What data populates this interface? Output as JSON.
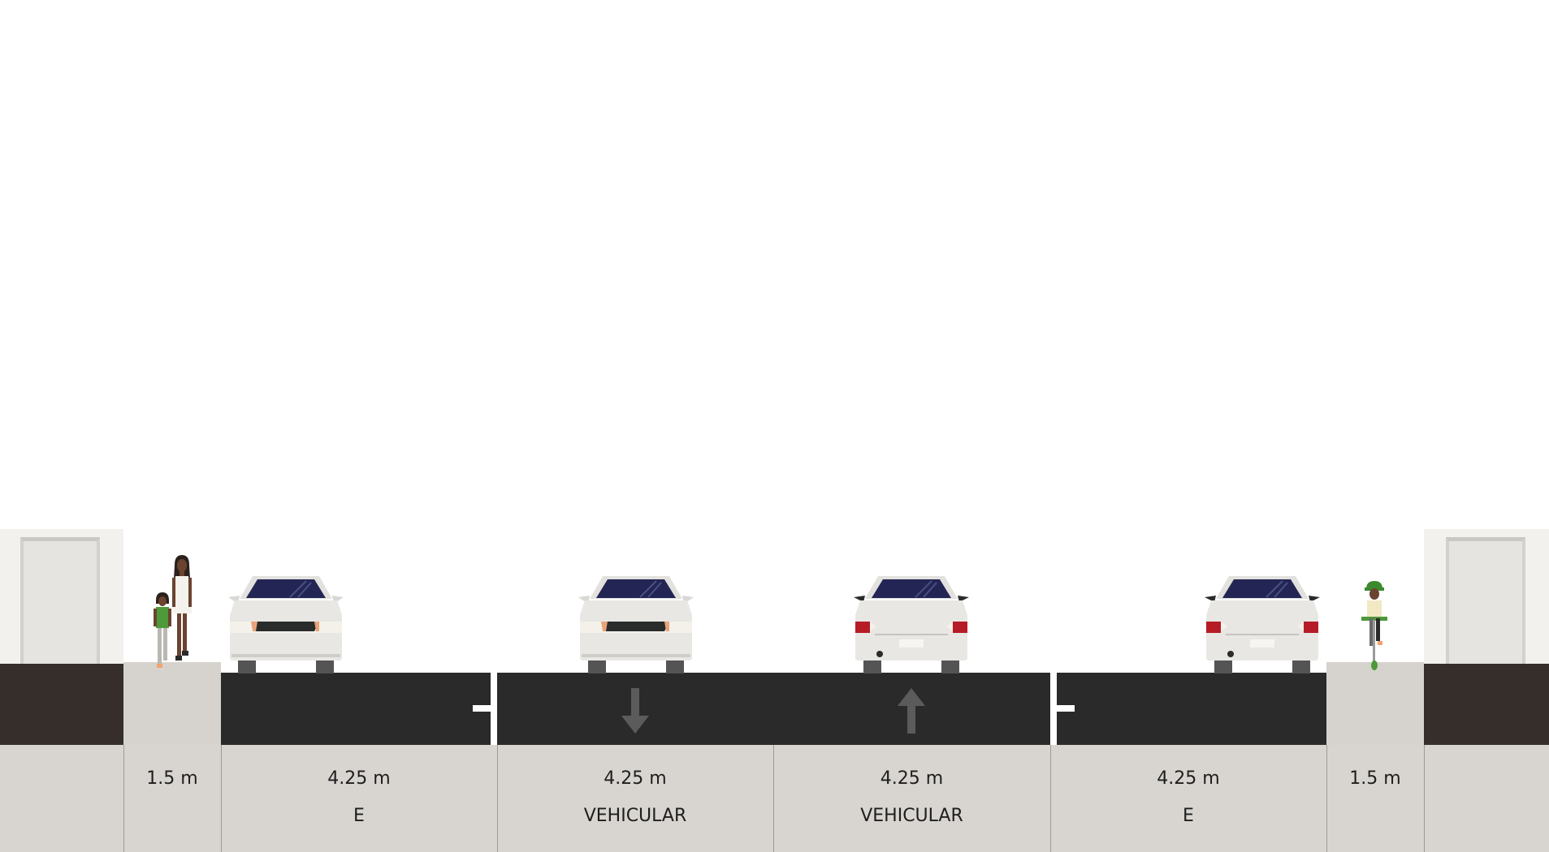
{
  "segments": [
    {
      "id": "sidewalk-left",
      "width": "1.5 m",
      "type": ""
    },
    {
      "id": "lane-1",
      "width": "4.25 m",
      "type": "E"
    },
    {
      "id": "lane-2",
      "width": "4.25 m",
      "type": "VEHICULAR"
    },
    {
      "id": "lane-3",
      "width": "4.25 m",
      "type": "VEHICULAR"
    },
    {
      "id": "lane-4",
      "width": "4.25 m",
      "type": "E"
    },
    {
      "id": "sidewalk-right",
      "width": "1.5 m",
      "type": ""
    }
  ],
  "colors": {
    "asphalt": "#292a29",
    "sidewalk": "#d6d3ce",
    "soil": "#362e2b",
    "building": "#f2f1ee",
    "label_band": "#d8d5d0",
    "car_window": "#232654",
    "tail_light": "#b51c25"
  },
  "icons": {
    "arrow_lane_2": "arrow-down-icon",
    "arrow_lane_3": "arrow-up-icon"
  }
}
